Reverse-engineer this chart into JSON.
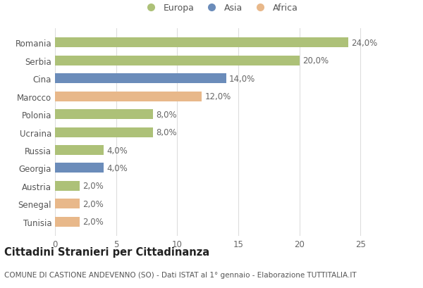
{
  "countries": [
    "Romania",
    "Serbia",
    "Cina",
    "Marocco",
    "Polonia",
    "Ucraina",
    "Russia",
    "Georgia",
    "Austria",
    "Senegal",
    "Tunisia"
  ],
  "values": [
    24.0,
    20.0,
    14.0,
    12.0,
    8.0,
    8.0,
    4.0,
    4.0,
    2.0,
    2.0,
    2.0
  ],
  "continents": [
    "Europa",
    "Europa",
    "Asia",
    "Africa",
    "Europa",
    "Europa",
    "Europa",
    "Asia",
    "Europa",
    "Africa",
    "Africa"
  ],
  "colors": {
    "Europa": "#adc178",
    "Asia": "#6b8cba",
    "Africa": "#e8b88a"
  },
  "legend_labels": [
    "Europa",
    "Asia",
    "Africa"
  ],
  "title": "Cittadini Stranieri per Cittadinanza",
  "subtitle": "COMUNE DI CASTIONE ANDEVENNO (SO) - Dati ISTAT al 1° gennaio - Elaborazione TUTTITALIA.IT",
  "xlim": [
    0,
    27
  ],
  "xticks": [
    0,
    5,
    10,
    15,
    20,
    25
  ],
  "bar_height": 0.55,
  "label_fontsize": 8.5,
  "tick_fontsize": 8.5,
  "title_fontsize": 10.5,
  "subtitle_fontsize": 7.5,
  "bg_color": "#ffffff",
  "grid_color": "#dddddd"
}
